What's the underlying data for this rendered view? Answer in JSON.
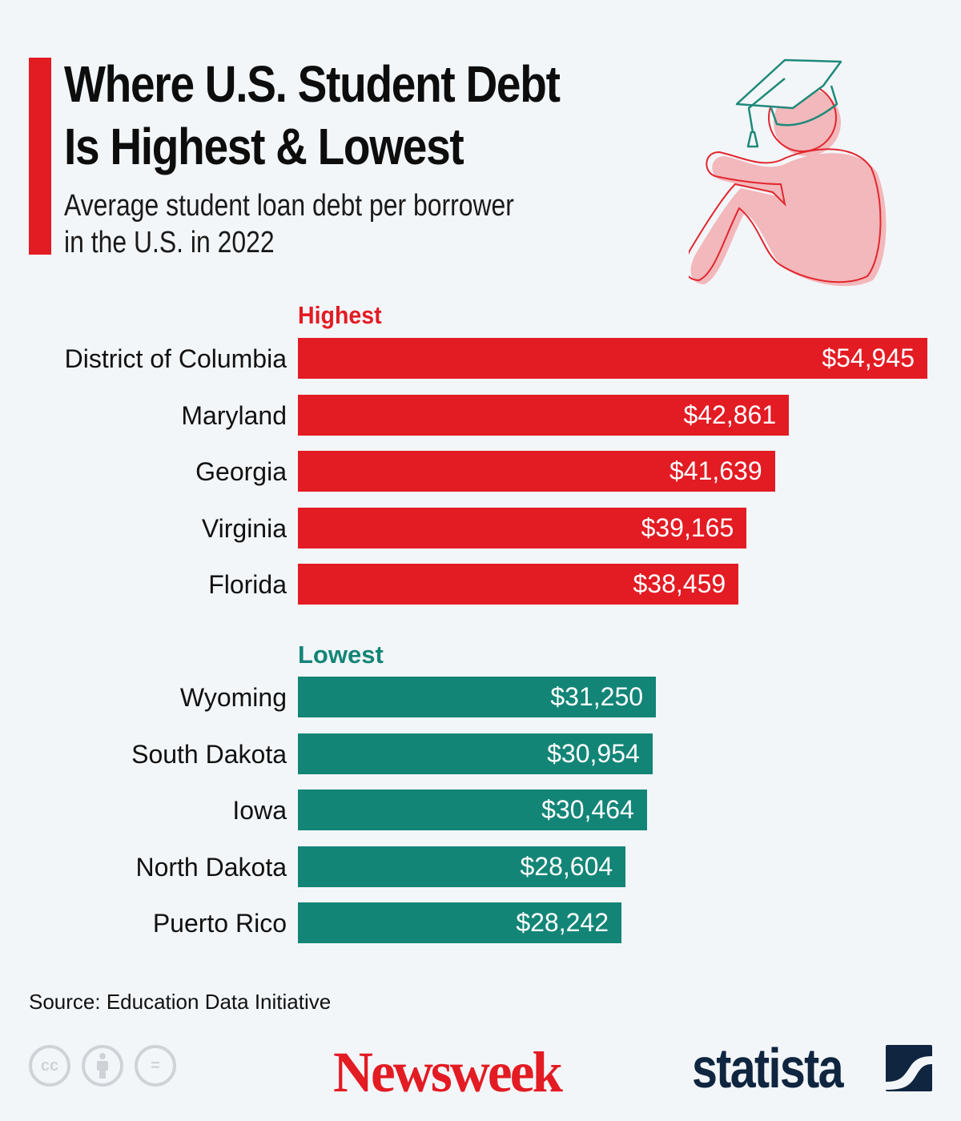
{
  "header": {
    "title_line1": "Where U.S. Student Debt",
    "title_line2": "Is Highest & Lowest",
    "subtitle_line1": "Average student loan debt per borrower",
    "subtitle_line2": "in the U.S. in 2022"
  },
  "colors": {
    "highest": "#e31b23",
    "lowest": "#138577",
    "accent": "#e31b23",
    "background": "#f3f6f9"
  },
  "illustration": {
    "icon": "graduate-student-icon"
  },
  "chart_data": {
    "type": "bar",
    "orientation": "horizontal",
    "title": "Where U.S. Student Debt Is Highest & Lowest",
    "subtitle": "Average student loan debt per borrower in the U.S. in 2022",
    "xlabel": "",
    "ylabel": "",
    "xlim": [
      0,
      54945
    ],
    "grid": false,
    "groups": [
      {
        "name": "Highest",
        "color": "#e31b23",
        "categories": [
          "District of Columbia",
          "Maryland",
          "Georgia",
          "Virginia",
          "Florida"
        ],
        "values": [
          54945,
          42861,
          41639,
          39165,
          38459
        ],
        "labels": [
          "$54,945",
          "$42,861",
          "$41,639",
          "$39,165",
          "$38,459"
        ]
      },
      {
        "name": "Lowest",
        "color": "#138577",
        "categories": [
          "Wyoming",
          "South Dakota",
          "Iowa",
          "North Dakota",
          "Puerto Rico"
        ],
        "values": [
          31250,
          30954,
          30464,
          28604,
          28242
        ],
        "labels": [
          "$31,250",
          "$30,954",
          "$30,464",
          "$28,604",
          "$28,242"
        ]
      }
    ]
  },
  "footer": {
    "source": "Source: Education Data Initiative",
    "license_icons": [
      "creative-commons-icon",
      "attribution-icon",
      "no-derivatives-icon"
    ],
    "cc_text": "cc",
    "nd_text": "=",
    "brand1": "Newsweek",
    "brand2": "statista"
  }
}
